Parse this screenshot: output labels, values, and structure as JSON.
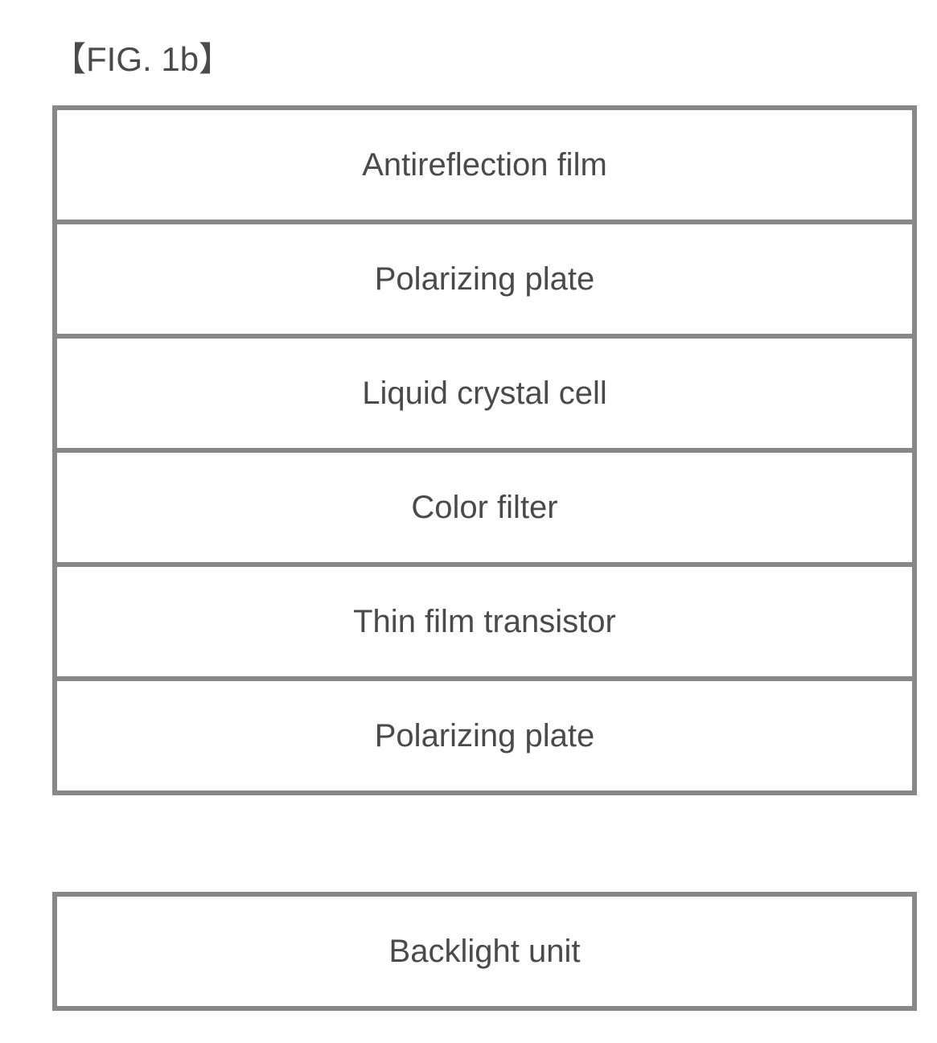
{
  "figure": {
    "title": "【FIG. 1b】",
    "title_fontsize": 42,
    "title_color": "#4a4a4a"
  },
  "diagram": {
    "type": "layered-stack",
    "border_color": "#888888",
    "border_width": 6,
    "background_color": "#ffffff",
    "layer_text_color": "#4a4a4a",
    "layer_fontsize": 40,
    "layer_height": 148,
    "stack_width": 1075,
    "gap_after_index": 5,
    "gap_height": 120,
    "layers": [
      {
        "label": "Antireflection film"
      },
      {
        "label": "Polarizing plate"
      },
      {
        "label": "Liquid crystal cell"
      },
      {
        "label": "Color filter"
      },
      {
        "label": "Thin film transistor"
      },
      {
        "label": "Polarizing plate"
      },
      {
        "label": "Backlight unit"
      }
    ]
  }
}
